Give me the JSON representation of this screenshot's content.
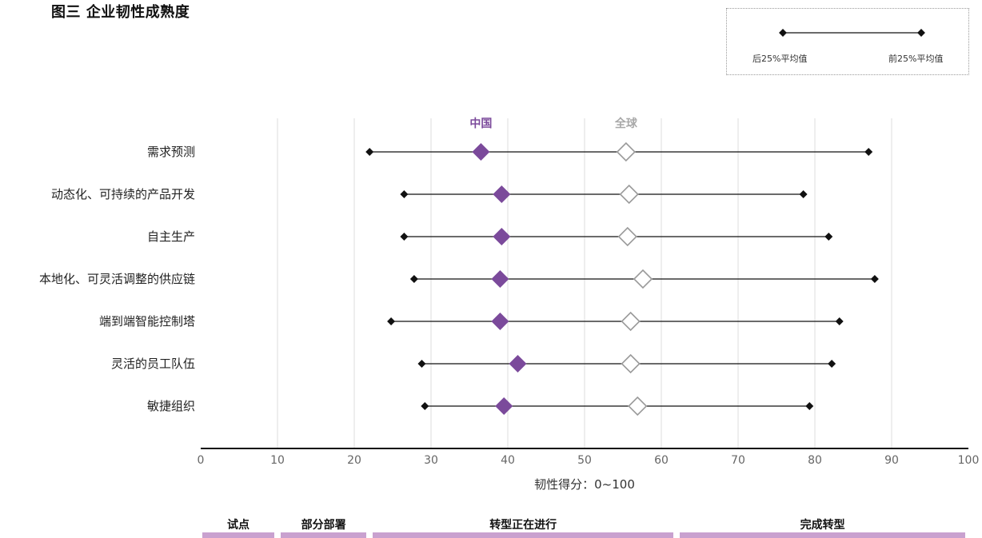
{
  "title": "图三  企业韧性成熟度",
  "legend": {
    "left_label": "后25%平均值",
    "right_label": "前25%平均值"
  },
  "colors": {
    "china": "#7b4a9b",
    "global_stroke": "#9a9a9a",
    "range": "#111111",
    "grid": "#dcdcdc",
    "phase_bar": "#c9a1cf"
  },
  "chart_data": {
    "type": "dot-range",
    "xlabel": "韧性得分：0~100",
    "xlim": [
      0,
      100
    ],
    "xticks": [
      "0",
      "10",
      "20",
      "30",
      "40",
      "50",
      "60",
      "70",
      "80",
      "90",
      "100"
    ],
    "grid": true,
    "series_labels": {
      "china": "中国",
      "global": "全球"
    },
    "categories": [
      "需求预测",
      "动态化、可持续的产品开发",
      "自主生产",
      "本地化、可灵活调整的供应链",
      "端到端智能控制塔",
      "灵活的员工队伍",
      "敏捷组织"
    ],
    "bottom25": [
      22,
      26.5,
      26.5,
      27.8,
      24.8,
      28.8,
      29.2
    ],
    "top25": [
      87,
      78.5,
      81.8,
      87.8,
      83.2,
      82.2,
      79.3
    ],
    "china": [
      36.5,
      39.2,
      39.2,
      39,
      39,
      41.3,
      39.5
    ],
    "global": [
      55.4,
      55.8,
      55.6,
      57.6,
      56,
      56,
      56.9
    ]
  },
  "phases": [
    {
      "label": "试点",
      "range": [
        0,
        10
      ]
    },
    {
      "label": "部分部署",
      "range": [
        10,
        22
      ]
    },
    {
      "label": "转型正在进行",
      "range": [
        22,
        62
      ]
    },
    {
      "label": "完成转型",
      "range": [
        62,
        100
      ]
    }
  ]
}
